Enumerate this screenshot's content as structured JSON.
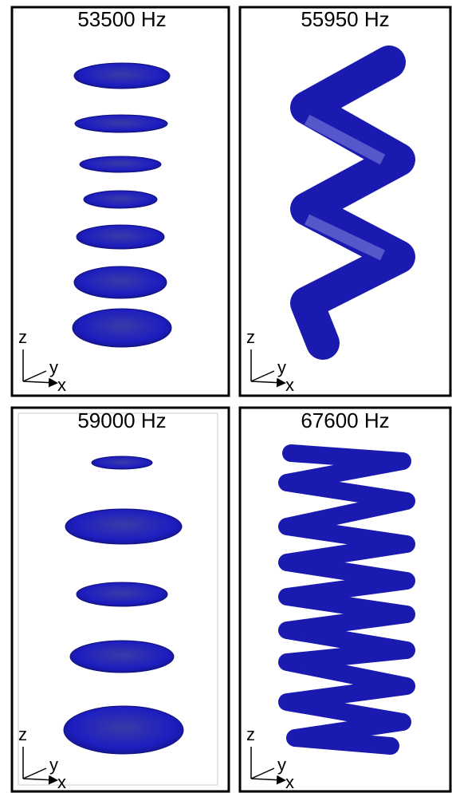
{
  "panels": [
    {
      "title": "53500 Hz",
      "axis_labels": [
        "z",
        "y",
        "x"
      ]
    },
    {
      "title": "55950 Hz",
      "axis_labels": [
        "z",
        "y",
        "x"
      ]
    },
    {
      "title": "59000 Hz",
      "axis_labels": [
        "z",
        "y",
        "x"
      ]
    },
    {
      "title": "67600 Hz",
      "axis_labels": [
        "z",
        "y",
        "x"
      ]
    }
  ]
}
